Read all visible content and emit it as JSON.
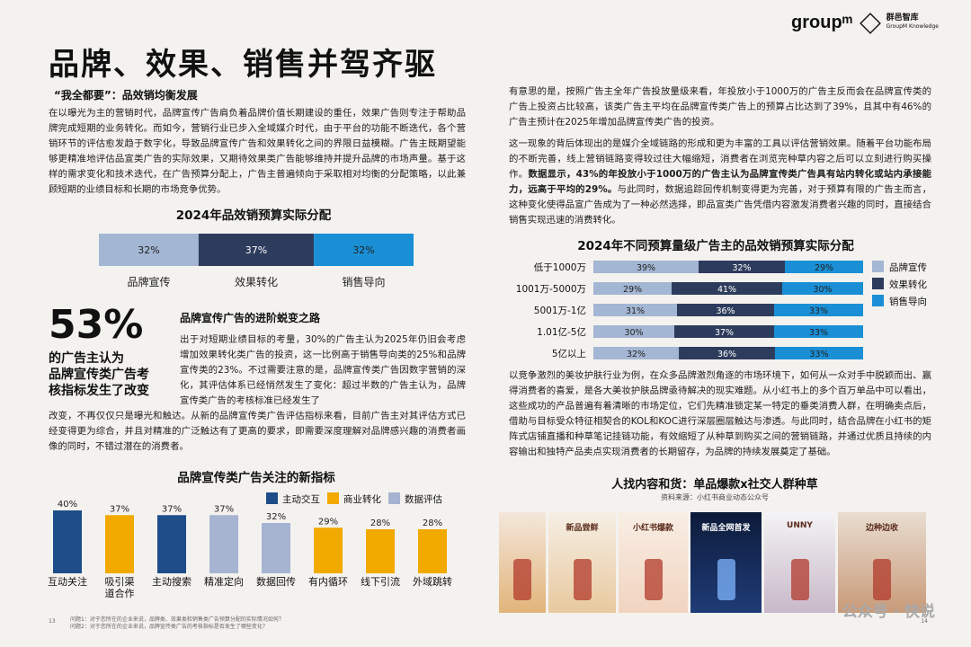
{
  "header": {
    "title": "品牌、效果、销售并驾齐驱",
    "brand_groupm": "groupᵐ",
    "brand_qd_line1": "群邑智库",
    "brand_qd_line2": "GroupM Knowledge"
  },
  "left": {
    "subhead": "“我全都要”：品效销均衡发展",
    "para1": "在以曝光为主的营销时代，品牌宣传广告肩负着品牌价值长期建设的重任，效果广告则专注于帮助品牌完成短期的业务转化。而如今，营销行业已步入全域媒介时代，由于平台的功能不断迭代，各个营销环节的评估愈发趋于数字化，导致品牌宣传广告和效果转化之间的界限日益模糊。广告主既期望能够更精准地评估品宣类广告的实际效果，又期待效果类广告能够维持并提升品牌的市场声量。基于这样的需求变化和技术迭代，在广告预算分配上，广告主普遍倾向于采取相对均衡的分配策略，以此兼顾短期的业绩目标和长期的市场竞争优势。",
    "chart1_title": "2024年品效销预算实际分配",
    "big_stat": "53%",
    "big_caption": "的广告主认为\n品牌宣传类广告考\n核指标发生了改变",
    "subhead2": "品牌宣传广告的进阶蜕变之路",
    "para2": "出于对短期业绩目标的考量，30%的广告主认为2025年仍旧会考虑增加效果转化类广告的投资，这一比例高于销售导向类的25%和品牌宣传类的23%。不过需要注意的是，品牌宣传类广告因数字营销的深化，其评估体系已经悄然发生了变化：超过半数的广告主认为，品牌宣传类广告的考核标准已经发生了",
    "para3": "改变，不再仅仅只是曝光和触达。从新的品牌宣传类广告评估指标来看，目前广告主对其评估方式已经变得更为综合，并且对精准的广泛触达有了更高的要求，即需要深度理解对品牌感兴趣的消费者画像的同时，不错过潜在的消费者。",
    "chart3_title": "品牌宣传类广告关注的新指标",
    "page_num": "13",
    "footnote1": "问题1：对于您所在的企业来说，品牌类、效果类和销售类广告预算分配的实际情况如何？",
    "footnote2": "问题2：对于您所在的企业来说，品牌宣传类广告的考核指标是否发生了哪些变化？"
  },
  "right": {
    "para1": "有意思的是，按照广告主全年广告投放量级来看，年投放小于1000万的广告主反而会在品牌宣传类的广告上投资占比较高，该类广告主平均在品牌宣传类广告上的预算占比达到了39%，且其中有46%的广告主预计在2025年增加品牌宣传类广告的投资。",
    "para2a": "这一现象的背后体现出的是媒介全域链路的形成和更为丰富的工具以评估营销效果。随着平台功能布局的不断完善，线上营销链路变得较过往大幅缩短，消费者在浏览完种草内容之后可以立刻进行购买操作。",
    "para2b": "数据显示，43%的年投放小于1000万的广告主认为品牌宣传类广告具有站内转化或站内承接能力，远高于平均的29%。",
    "para2c": "与此同时，数据追踪回传机制变得更为完善，对于预算有限的广告主而言，这种变化使得品宣广告成为了一种必然选择，即品宣类广告凭借内容激发消费者兴趣的同时，直接结合销售实现迅速的消费转化。",
    "chart2_title": "2024年不同预算量级广告主的品效销预算实际分配",
    "para3": "以竞争激烈的美妆护肤行业为例，在众多品牌激烈角逐的市场环境下，如何从一众对手中脱颖而出、赢得消费者的喜爱，是各大美妆护肤品牌亟待解决的现实难题。从小红书上的多个百万单品中可以看出，这些成功的产品普遍有着清晰的市场定位，它们先精准锁定某一特定的垂类消费人群，在明确卖点后，借助与目标受众特征相契合的KOL和KOC进行深层圈层触达与渗透。与此同时，结合品牌在小红书的矩阵式店铺直播和种草笔记挂链功能，有效缩短了从种草到购买之间的营销链路，并通过优质且持续的内容输出和独特产品卖点实现消费者的长期留存，为品牌的持续发展奠定了基础。",
    "photos_title": "人找内容和货：单品爆款x社交人群种草",
    "photos_source": "资料来源：小红书商业动态公众号",
    "photo_texts": [
      "",
      "新品尝鲜",
      "小红书爆款",
      "新品全网首发",
      "UNNY",
      "边种边收"
    ],
    "page_num": "14",
    "watermark": "公众号 · 快说"
  },
  "colors": {
    "brand": "#a3b6d3",
    "effect": "#2d3c5c",
    "sales": "#1a8fd6",
    "interaction": "#1e4e8a",
    "commerce": "#f2a900",
    "data_eval": "#a6b4d2"
  },
  "chart_data": [
    {
      "type": "bar",
      "orientation": "horizontal-stacked",
      "title": "2024年品效销预算实际分配",
      "categories": [
        "品牌宣传",
        "效果转化",
        "销售导向"
      ],
      "values": [
        32,
        37,
        32
      ],
      "labels": [
        "32%",
        "37%",
        "32%"
      ]
    },
    {
      "type": "bar",
      "orientation": "horizontal-stacked",
      "title": "2024年不同预算量级广告主的品效销预算实际分配",
      "categories": [
        "低于1000万",
        "1001万-5000万",
        "5001万-1亿",
        "1.01亿-5亿",
        "5亿以上"
      ],
      "series": [
        {
          "name": "品牌宣传",
          "values": [
            39,
            29,
            31,
            30,
            32
          ]
        },
        {
          "name": "效果转化",
          "values": [
            32,
            41,
            36,
            37,
            36
          ]
        },
        {
          "name": "销售导向",
          "values": [
            29,
            30,
            33,
            33,
            33
          ]
        }
      ],
      "legend": "right"
    },
    {
      "type": "bar",
      "title": "品牌宣传类广告关注的新指标",
      "categories": [
        "互动关注",
        "吸引渠道合作",
        "主动搜索",
        "精准定向",
        "数据回传",
        "有内循环",
        "线下引流",
        "外域跳转"
      ],
      "category_labels": [
        "互动关注",
        "吸引渠\n道合作",
        "主动搜索",
        "精准定向",
        "数据回传",
        "有内循环",
        "线下引流",
        "外域跳转"
      ],
      "values": [
        40,
        37,
        37,
        37,
        32,
        29,
        28,
        28
      ],
      "value_labels": [
        "40%",
        "37%",
        "37%",
        "37%",
        "32%",
        "29%",
        "28%",
        "28%"
      ],
      "groups": [
        "主动交互",
        "商业转化",
        "主动交互",
        "数据评估",
        "数据评估",
        "商业转化",
        "商业转化",
        "商业转化"
      ],
      "legend_entries": [
        "主动交互",
        "商业转化",
        "数据评估"
      ],
      "legend": "top"
    }
  ]
}
